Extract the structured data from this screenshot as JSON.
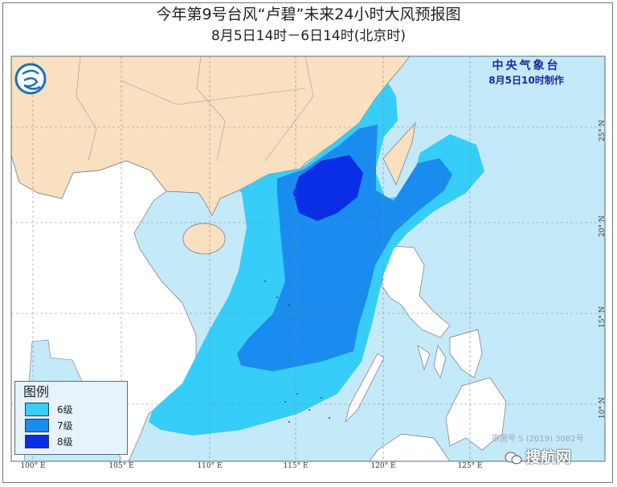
{
  "title": {
    "line1": "今年第9号台风“卢碧”未来24小时大风预报图",
    "line2": "8月5日14时－6日14时(北京时)"
  },
  "agency": {
    "name": "中央气象台",
    "issued": "8月5日10时制作",
    "logo_icon": "cma-logo-icon"
  },
  "legend": {
    "title": "图例",
    "items": [
      {
        "label": "6级",
        "color": "#36cdf8"
      },
      {
        "label": "7级",
        "color": "#1a8cf0"
      },
      {
        "label": "8级",
        "color": "#0a2ee6"
      }
    ]
  },
  "axes": {
    "longitude": [
      "100° E",
      "105° E",
      "110° E",
      "115° E",
      "120° E",
      "125° E"
    ],
    "latitude": [
      "25° N",
      "20° N",
      "15° N",
      "10° N"
    ]
  },
  "colors": {
    "sea": "#c4e9f9",
    "china_land": "#f8e0c0",
    "other_land": "#ffffff"
  },
  "approval": "审图号 S (2019) 3082号",
  "watermark": {
    "text": "搜航网",
    "icon": "wechat-icon"
  }
}
